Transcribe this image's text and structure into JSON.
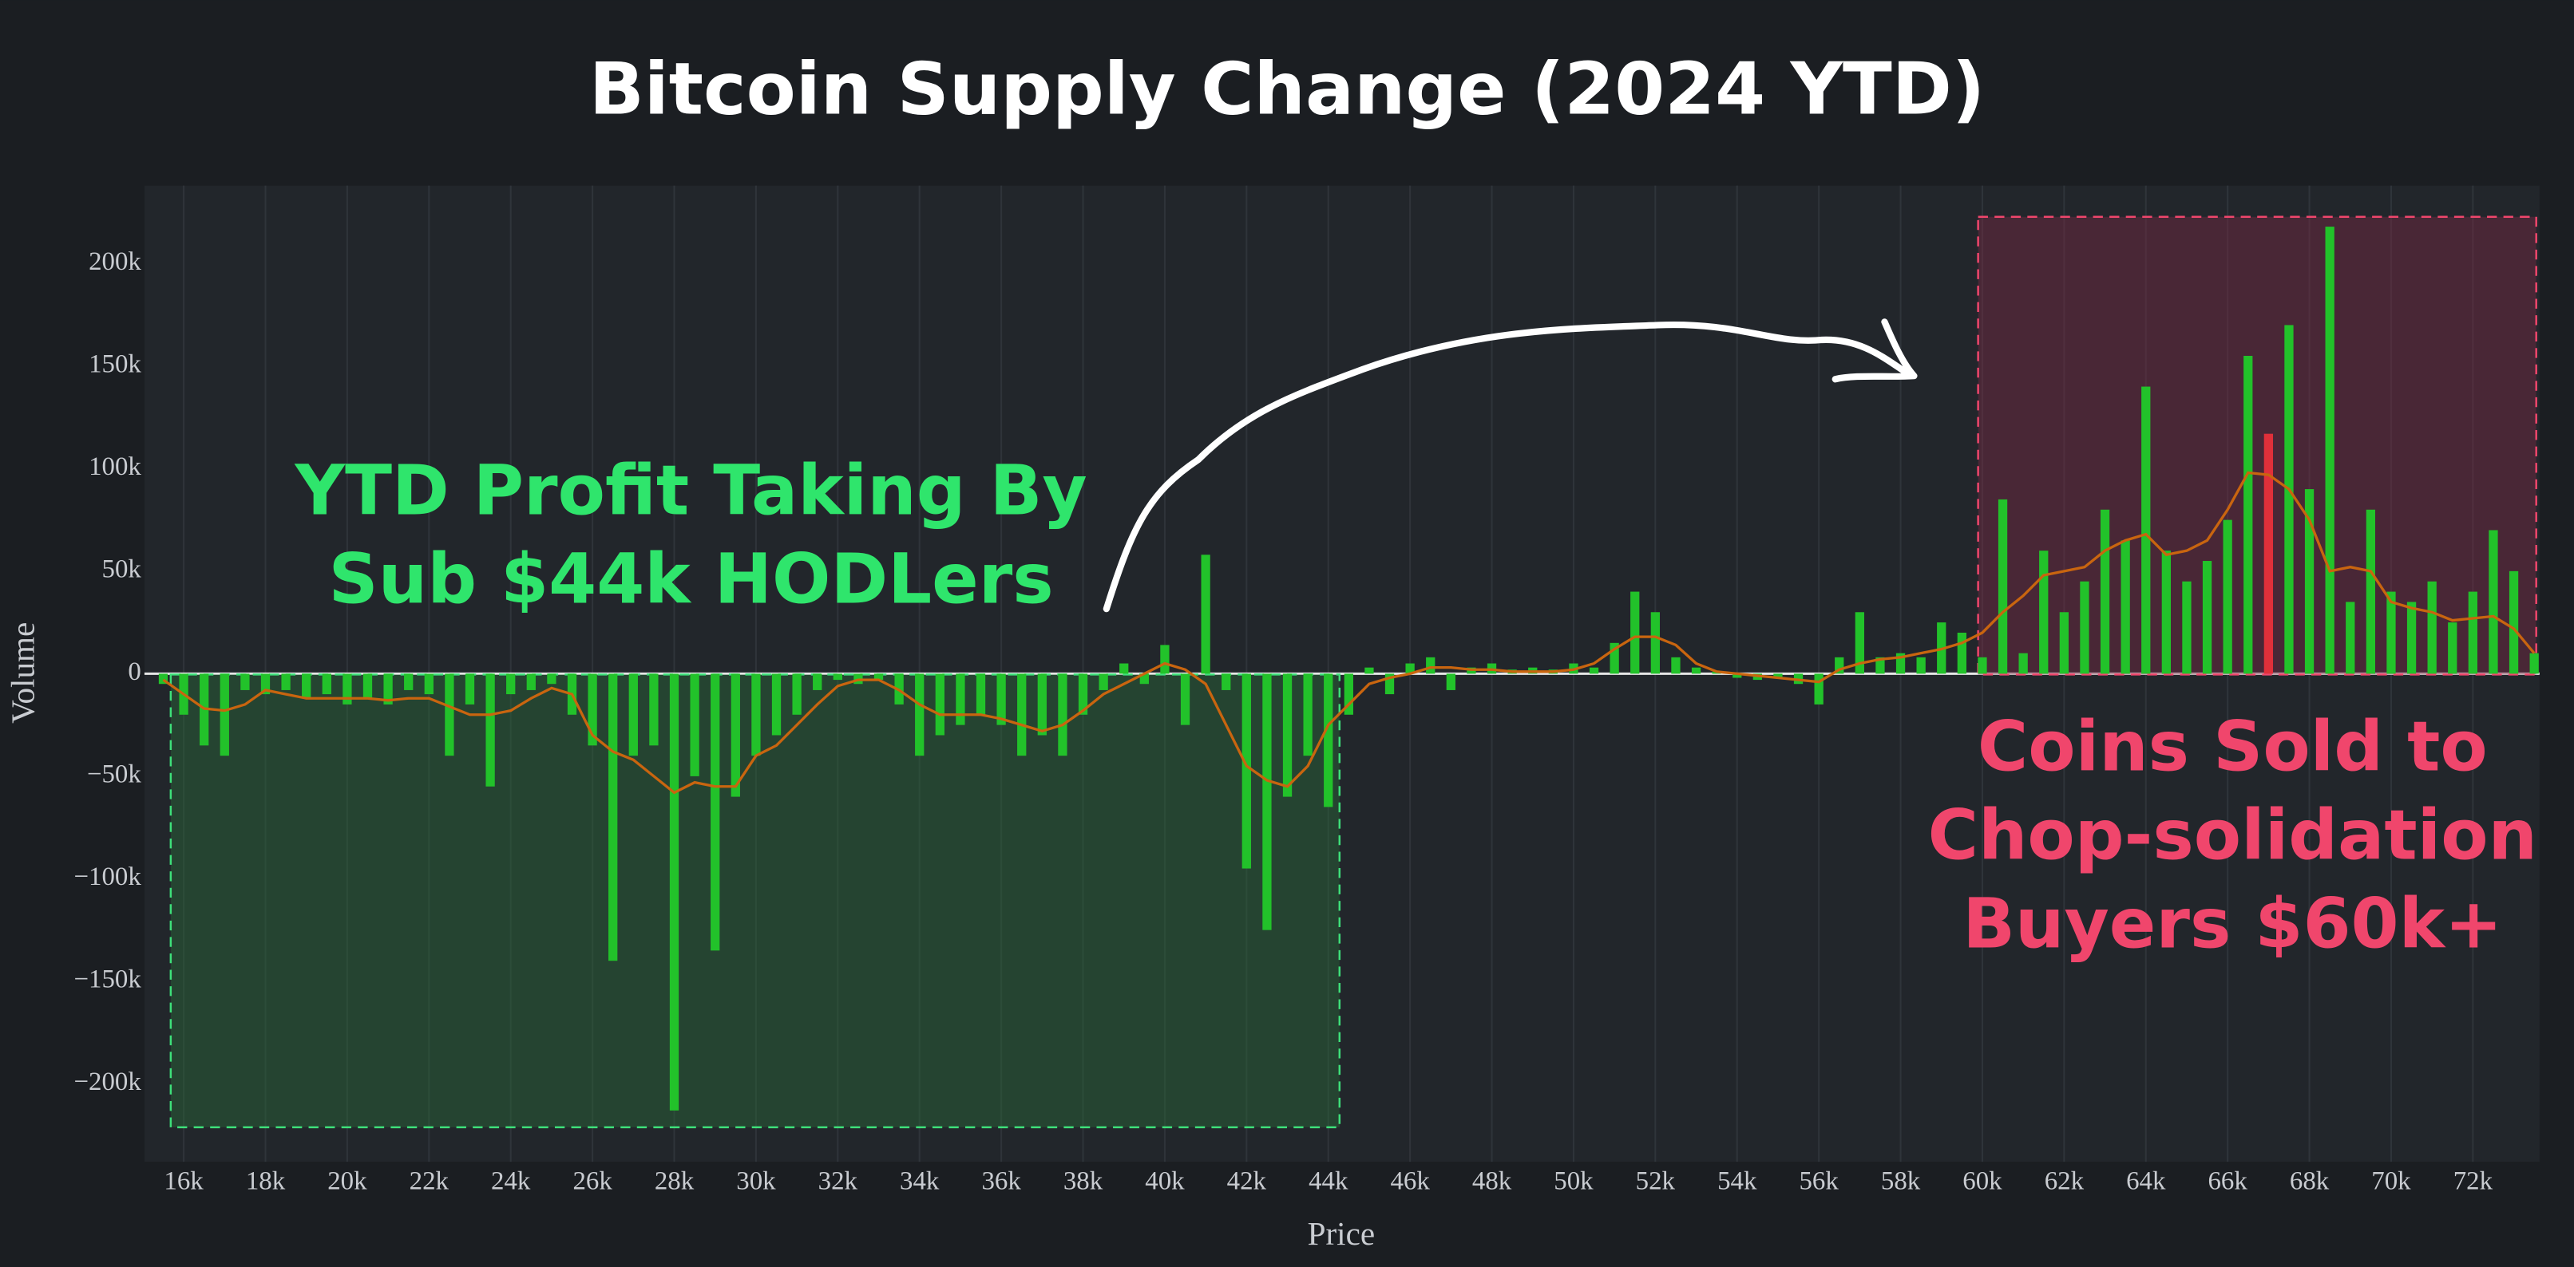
{
  "chart_data": {
    "type": "bar",
    "title": "Bitcoin Supply Change (2024 YTD)",
    "x_label": "Price",
    "y_label": "Volume",
    "x": [
      15500,
      16000,
      16500,
      17000,
      17500,
      18000,
      18500,
      19000,
      19500,
      20000,
      20500,
      21000,
      21500,
      22000,
      22500,
      23000,
      23500,
      24000,
      24500,
      25000,
      25500,
      26000,
      26500,
      27000,
      27500,
      28000,
      28500,
      29000,
      29500,
      30000,
      30500,
      31000,
      31500,
      32000,
      32500,
      33000,
      33500,
      34000,
      34500,
      35000,
      35500,
      36000,
      36500,
      37000,
      37500,
      38000,
      38500,
      39000,
      39500,
      40000,
      40500,
      41000,
      41500,
      42000,
      42500,
      43000,
      43500,
      44000,
      44500,
      45000,
      45500,
      46000,
      46500,
      47000,
      47500,
      48000,
      48500,
      49000,
      49500,
      50000,
      50500,
      51000,
      51500,
      52000,
      52500,
      53000,
      53500,
      54000,
      54500,
      55000,
      55500,
      56000,
      56500,
      57000,
      57500,
      58000,
      58500,
      59000,
      59500,
      60000,
      60500,
      61000,
      61500,
      62000,
      62500,
      63000,
      63500,
      64000,
      64500,
      65000,
      65500,
      66000,
      66500,
      67000,
      67500,
      68000,
      68500,
      69000,
      69500,
      70000,
      70500,
      71000,
      71500,
      72000,
      72500,
      73000,
      73500
    ],
    "values": [
      -5000,
      -20000,
      -35000,
      -40000,
      -8000,
      -10000,
      -8000,
      -12000,
      -10000,
      -15000,
      -12000,
      -15000,
      -8000,
      -10000,
      -40000,
      -15000,
      -55000,
      -10000,
      -8000,
      -5000,
      -20000,
      -35000,
      -140000,
      -40000,
      -35000,
      -213000,
      -50000,
      -135000,
      -60000,
      -40000,
      -30000,
      -20000,
      -8000,
      -3000,
      -5000,
      -3000,
      -15000,
      -40000,
      -30000,
      -25000,
      -20000,
      -25000,
      -40000,
      -30000,
      -40000,
      -20000,
      -8000,
      5000,
      -5000,
      14000,
      -25000,
      58000,
      -8000,
      -95000,
      -125000,
      -60000,
      -40000,
      -65000,
      -20000,
      3000,
      -10000,
      5000,
      8000,
      -8000,
      3000,
      5000,
      2000,
      3000,
      2000,
      5000,
      3000,
      15000,
      40000,
      30000,
      8000,
      3000,
      1000,
      -2000,
      -3000,
      -2000,
      -5000,
      -15000,
      8000,
      30000,
      8000,
      10000,
      8000,
      25000,
      20000,
      8000,
      85000,
      10000,
      60000,
      30000,
      45000,
      80000,
      65000,
      140000,
      60000,
      45000,
      55000,
      75000,
      155000,
      117000,
      170000,
      90000,
      218000,
      35000,
      80000,
      40000,
      35000,
      45000,
      25000,
      40000,
      70000,
      50000,
      10000
    ],
    "color": "#22c22a",
    "highlight": {
      "x": 67000,
      "color": "#e0303a"
    },
    "line": {
      "color": "#c9650f",
      "values": [
        -3000,
        -10000,
        -17000,
        -18000,
        -15000,
        -8000,
        -10000,
        -12000,
        -12000,
        -12000,
        -12000,
        -13000,
        -12000,
        -12000,
        -16000,
        -20000,
        -20000,
        -18000,
        -12000,
        -7000,
        -10000,
        -30000,
        -38000,
        -42000,
        -50000,
        -58000,
        -53000,
        -55000,
        -55000,
        -40000,
        -35000,
        -25000,
        -15000,
        -6000,
        -3000,
        -3000,
        -8000,
        -15000,
        -20000,
        -20000,
        -20000,
        -22000,
        -25000,
        -28000,
        -25000,
        -18000,
        -10000,
        -5000,
        0,
        5000,
        2000,
        -5000,
        -25000,
        -45000,
        -52000,
        -55000,
        -45000,
        -25000,
        -15000,
        -5000,
        -2000,
        0,
        3000,
        3000,
        2000,
        2000,
        1000,
        1000,
        1000,
        2000,
        5000,
        12000,
        18000,
        18000,
        14000,
        5000,
        1000,
        0,
        -1000,
        -2000,
        -3000,
        -4000,
        2000,
        5000,
        7000,
        8000,
        10000,
        12000,
        15000,
        20000,
        30000,
        38000,
        48000,
        50000,
        52000,
        60000,
        65000,
        68000,
        58000,
        60000,
        65000,
        80000,
        98000,
        97000,
        90000,
        75000,
        50000,
        52000,
        50000,
        35000,
        32000,
        30000,
        26000,
        27000,
        28000,
        22000,
        10000
      ]
    },
    "xlim": [
      15040,
      73630
    ],
    "ylim": [
      -238000,
      238000
    ],
    "xticks": [
      {
        "value": 16000,
        "label": "16k"
      },
      {
        "value": 18000,
        "label": "18k"
      },
      {
        "value": 20000,
        "label": "20k"
      },
      {
        "value": 22000,
        "label": "22k"
      },
      {
        "value": 24000,
        "label": "24k"
      },
      {
        "value": 26000,
        "label": "26k"
      },
      {
        "value": 28000,
        "label": "28k"
      },
      {
        "value": 30000,
        "label": "30k"
      },
      {
        "value": 32000,
        "label": "32k"
      },
      {
        "value": 34000,
        "label": "34k"
      },
      {
        "value": 36000,
        "label": "36k"
      },
      {
        "value": 38000,
        "label": "38k"
      },
      {
        "value": 40000,
        "label": "40k"
      },
      {
        "value": 42000,
        "label": "42k"
      },
      {
        "value": 44000,
        "label": "44k"
      },
      {
        "value": 46000,
        "label": "46k"
      },
      {
        "value": 48000,
        "label": "48k"
      },
      {
        "value": 50000,
        "label": "50k"
      },
      {
        "value": 52000,
        "label": "52k"
      },
      {
        "value": 54000,
        "label": "54k"
      },
      {
        "value": 56000,
        "label": "56k"
      },
      {
        "value": 58000,
        "label": "58k"
      },
      {
        "value": 60000,
        "label": "60k"
      },
      {
        "value": 62000,
        "label": "62k"
      },
      {
        "value": 64000,
        "label": "64k"
      },
      {
        "value": 66000,
        "label": "66k"
      },
      {
        "value": 68000,
        "label": "68k"
      },
      {
        "value": 70000,
        "label": "70k"
      },
      {
        "value": 72000,
        "label": "72k"
      }
    ],
    "yticks": [
      {
        "value": -200000,
        "label": "−200k"
      },
      {
        "value": -150000,
        "label": "−150k"
      },
      {
        "value": -100000,
        "label": "−100k"
      },
      {
        "value": -50000,
        "label": "−50k"
      },
      0,
      {
        "value": 50000,
        "label": "50k"
      },
      {
        "value": 100000,
        "label": "100k"
      },
      {
        "value": 150000,
        "label": "150k"
      },
      {
        "value": 200000,
        "label": "200k"
      }
    ],
    "grid": true,
    "annotations": [
      {
        "lines": [
          "YTD Profit Taking By",
          "Sub $44k HODLers"
        ],
        "color": "#2fe56c"
      },
      {
        "lines": [
          "Coins Sold to",
          "Chop-solidation",
          "Buyers $60k+"
        ],
        "color": "#f0466c"
      }
    ]
  }
}
